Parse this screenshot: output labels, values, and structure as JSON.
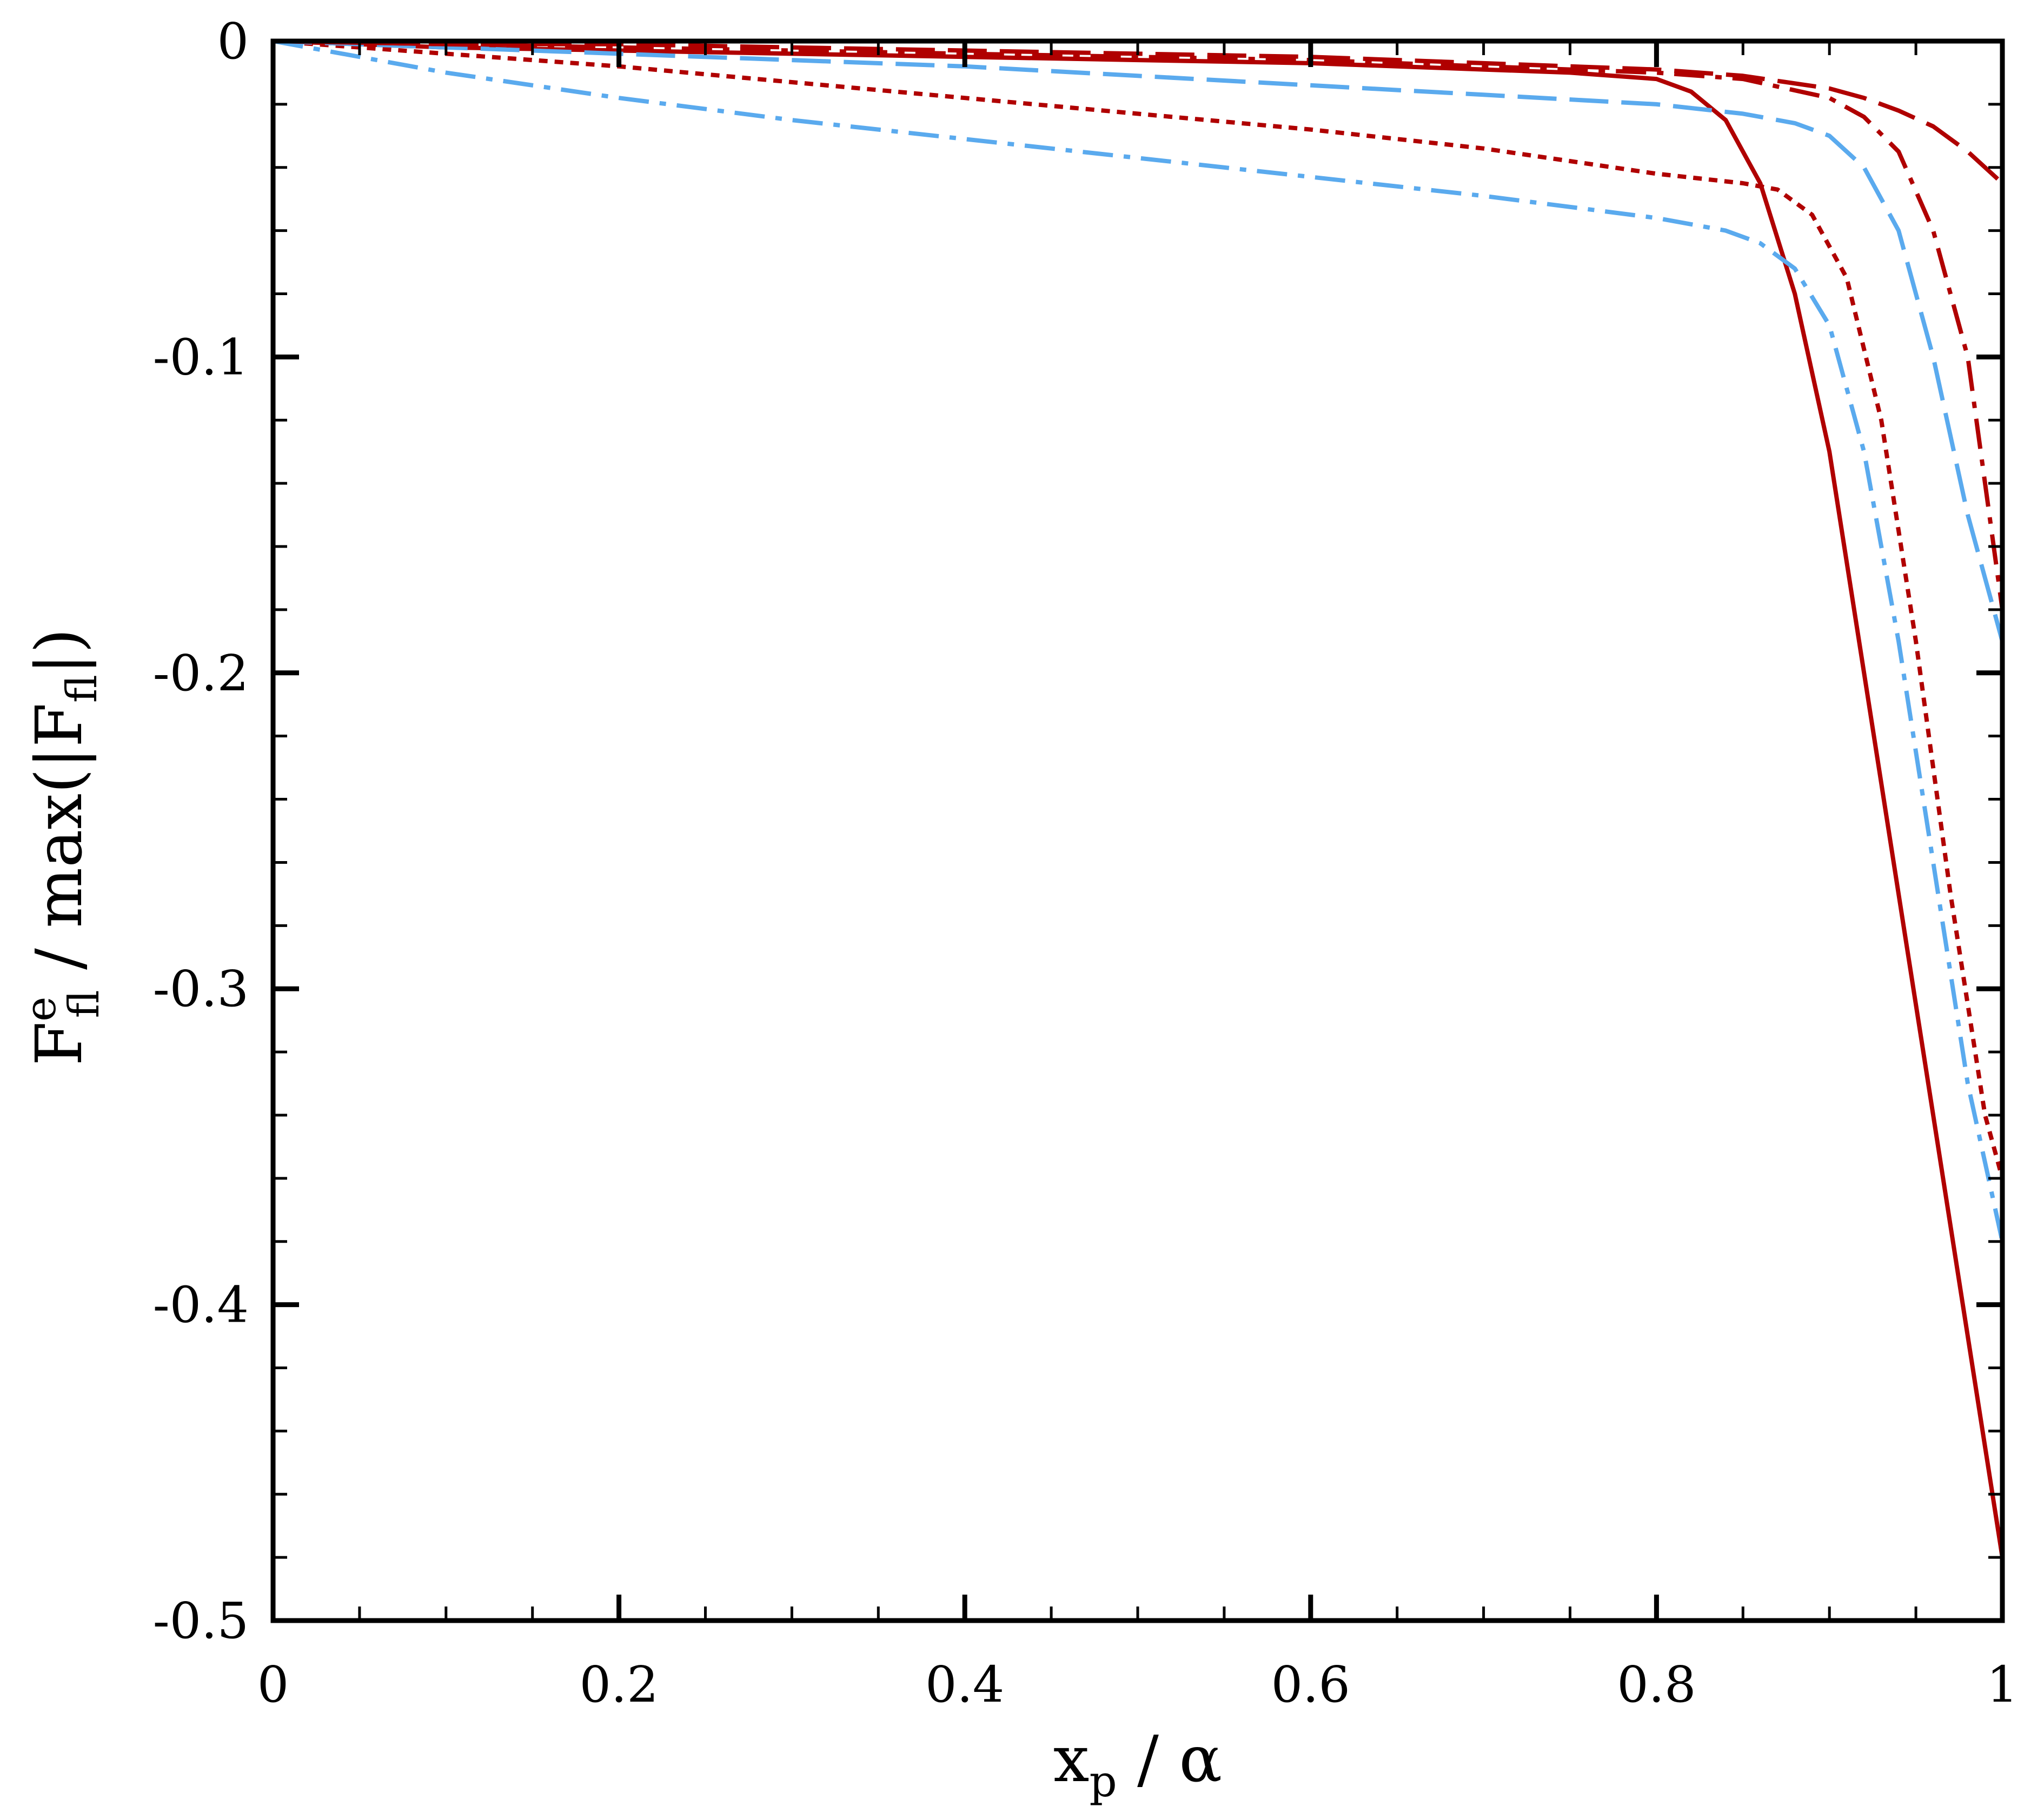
{
  "chart_data": {
    "type": "line",
    "xlabel": {
      "main": "x",
      "sub": "p",
      "rest": " / α"
    },
    "ylabel": {
      "F": "F",
      "sup": "e",
      "sub": "fl",
      "mid": " / max(|F",
      "sub2": "fl",
      "end": "|)"
    },
    "xlim": [
      0,
      1
    ],
    "ylim": [
      -0.5,
      0
    ],
    "x_ticks": [
      "0",
      "0.2",
      "0.4",
      "0.6",
      "0.8",
      "1"
    ],
    "y_ticks": [
      "0",
      "-0.1",
      "-0.2",
      "-0.3",
      "-0.4",
      "-0.5"
    ],
    "grid": false,
    "series": [
      {
        "style": "solid",
        "color": "#b00000",
        "x": [
          0,
          0.1,
          0.2,
          0.3,
          0.4,
          0.5,
          0.6,
          0.7,
          0.75,
          0.8,
          0.82,
          0.84,
          0.86,
          0.88,
          0.9,
          0.92,
          0.94,
          0.96,
          0.98,
          1.0
        ],
        "y": [
          0,
          -0.002,
          -0.003,
          -0.004,
          -0.005,
          -0.006,
          -0.007,
          -0.009,
          -0.01,
          -0.012,
          -0.016,
          -0.025,
          -0.045,
          -0.08,
          -0.13,
          -0.2,
          -0.27,
          -0.34,
          -0.41,
          -0.48
        ]
      },
      {
        "style": "dotted",
        "color": "#b00000",
        "x": [
          0,
          0.1,
          0.2,
          0.3,
          0.4,
          0.5,
          0.6,
          0.7,
          0.8,
          0.85,
          0.87,
          0.89,
          0.91,
          0.93,
          0.95,
          0.97,
          0.99,
          1.0
        ],
        "y": [
          0,
          -0.004,
          -0.008,
          -0.013,
          -0.018,
          -0.023,
          -0.028,
          -0.034,
          -0.042,
          -0.045,
          -0.047,
          -0.055,
          -0.075,
          -0.12,
          -0.19,
          -0.27,
          -0.34,
          -0.36
        ]
      },
      {
        "style": "dash-dot",
        "color": "#5aaaee",
        "x": [
          0,
          0.1,
          0.2,
          0.3,
          0.4,
          0.5,
          0.6,
          0.7,
          0.8,
          0.84,
          0.86,
          0.88,
          0.9,
          0.92,
          0.94,
          0.96,
          0.98,
          1.0
        ],
        "y": [
          0,
          -0.01,
          -0.018,
          -0.025,
          -0.031,
          -0.037,
          -0.043,
          -0.049,
          -0.056,
          -0.06,
          -0.064,
          -0.072,
          -0.09,
          -0.13,
          -0.19,
          -0.26,
          -0.33,
          -0.38
        ]
      },
      {
        "style": "long-dash",
        "color": "#5aaaee",
        "x": [
          0,
          0.1,
          0.2,
          0.3,
          0.4,
          0.5,
          0.6,
          0.7,
          0.8,
          0.85,
          0.88,
          0.9,
          0.92,
          0.94,
          0.96,
          0.98,
          1.0
        ],
        "y": [
          0,
          -0.002,
          -0.004,
          -0.006,
          -0.008,
          -0.011,
          -0.014,
          -0.017,
          -0.02,
          -0.023,
          -0.026,
          -0.03,
          -0.04,
          -0.06,
          -0.1,
          -0.15,
          -0.19
        ]
      },
      {
        "style": "dash-dot",
        "color": "#b00000",
        "x": [
          0,
          0.1,
          0.2,
          0.3,
          0.4,
          0.5,
          0.6,
          0.7,
          0.8,
          0.85,
          0.9,
          0.92,
          0.94,
          0.96,
          0.98,
          1.0
        ],
        "y": [
          0,
          -0.001,
          -0.002,
          -0.003,
          -0.004,
          -0.005,
          -0.006,
          -0.008,
          -0.01,
          -0.012,
          -0.018,
          -0.024,
          -0.035,
          -0.06,
          -0.1,
          -0.18
        ]
      },
      {
        "style": "long-dash",
        "color": "#b00000",
        "x": [
          0,
          0.1,
          0.2,
          0.3,
          0.4,
          0.5,
          0.6,
          0.7,
          0.8,
          0.85,
          0.9,
          0.92,
          0.94,
          0.96,
          0.98,
          1.0
        ],
        "y": [
          0,
          -0.001,
          -0.001,
          -0.002,
          -0.003,
          -0.004,
          -0.005,
          -0.007,
          -0.009,
          -0.011,
          -0.015,
          -0.018,
          -0.022,
          -0.027,
          -0.035,
          -0.045
        ]
      }
    ]
  }
}
